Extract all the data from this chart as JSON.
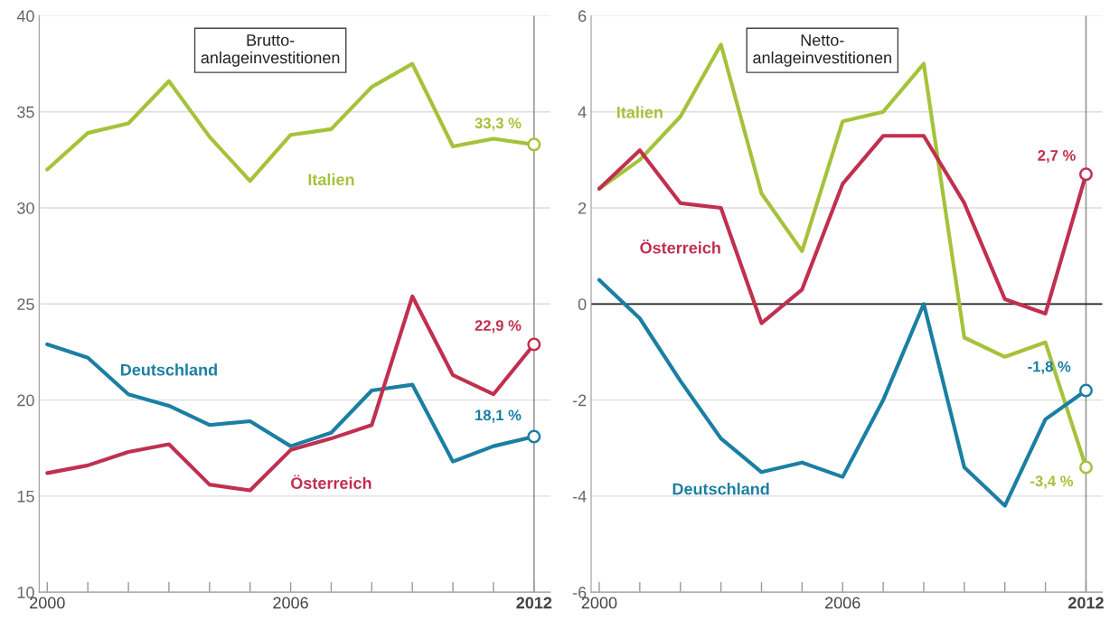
{
  "chart_data": [
    {
      "type": "line",
      "title": "Brutto-\nanlageinvestitionen",
      "x": [
        2000,
        2001,
        2002,
        2003,
        2004,
        2005,
        2006,
        2007,
        2008,
        2009,
        2010,
        2011,
        2012
      ],
      "series": [
        {
          "name": "Italien",
          "color": "#a5c23a",
          "values": [
            32.0,
            33.9,
            34.4,
            36.6,
            33.7,
            31.4,
            33.8,
            34.1,
            36.3,
            37.5,
            33.2,
            33.6,
            33.3
          ],
          "value_labels": [
            null,
            null,
            null,
            null,
            null,
            null,
            null,
            null,
            null,
            null,
            null,
            null,
            "33,3 %"
          ]
        },
        {
          "name": "Deutschland",
          "color": "#1b7fa3",
          "values": [
            22.9,
            22.2,
            20.3,
            19.7,
            18.7,
            18.9,
            17.6,
            18.3,
            20.5,
            20.8,
            16.8,
            17.6,
            18.1
          ],
          "value_labels": [
            null,
            null,
            null,
            null,
            null,
            null,
            null,
            null,
            null,
            null,
            null,
            null,
            "18,1 %"
          ]
        },
        {
          "name": "Österreich",
          "color": "#c0304f",
          "values": [
            16.2,
            16.6,
            17.3,
            17.7,
            15.6,
            15.3,
            17.4,
            18.0,
            18.7,
            25.4,
            21.3,
            20.3,
            22.9
          ],
          "value_labels": [
            null,
            null,
            null,
            null,
            null,
            null,
            null,
            null,
            null,
            null,
            null,
            null,
            "22,9 %"
          ]
        }
      ],
      "xlim": [
        1999.8,
        2012.4
      ],
      "ylim": [
        10,
        40
      ],
      "yticks": [
        10,
        15,
        20,
        25,
        30,
        35,
        40
      ],
      "xticks": [
        2000,
        {
          "value": 2001,
          "label": null
        },
        {
          "value": 2002,
          "label": null
        },
        {
          "value": 2003,
          "label": null
        },
        {
          "value": 2004,
          "label": null
        },
        {
          "value": 2005,
          "label": null
        },
        2006,
        {
          "value": 2007,
          "label": null
        },
        {
          "value": 2008,
          "label": null
        },
        {
          "value": 2009,
          "label": null
        },
        {
          "value": 2010,
          "label": null
        },
        {
          "value": 2011,
          "label": null
        },
        2012
      ],
      "ref_lines": [
        {
          "axis": "x",
          "value": 2012,
          "label": null,
          "color": "#999999"
        }
      ],
      "grid": "y",
      "legend": false
    },
    {
      "type": "line",
      "title": "Netto-\nanlageinvestitionen",
      "x": [
        2000,
        2001,
        2002,
        2003,
        2004,
        2005,
        2006,
        2007,
        2008,
        2009,
        2010,
        2011,
        2012
      ],
      "series": [
        {
          "name": "Italien",
          "color": "#a5c23a",
          "values": [
            2.4,
            3.0,
            3.9,
            5.4,
            2.3,
            1.1,
            3.8,
            4.0,
            5.0,
            -0.7,
            -1.1,
            -0.8,
            -3.4
          ],
          "value_labels": [
            null,
            null,
            null,
            null,
            null,
            null,
            null,
            null,
            null,
            null,
            null,
            null,
            "-3,4 %"
          ]
        },
        {
          "name": "Österreich",
          "color": "#c0304f",
          "values": [
            2.4,
            3.2,
            2.1,
            2.0,
            -0.4,
            0.3,
            2.5,
            3.5,
            3.5,
            2.1,
            0.1,
            -0.2,
            2.7
          ],
          "value_labels": [
            null,
            null,
            null,
            null,
            null,
            null,
            null,
            null,
            null,
            null,
            null,
            null,
            "2,7 %"
          ]
        },
        {
          "name": "Deutschland",
          "color": "#1b7fa3",
          "values": [
            0.5,
            -0.3,
            -1.6,
            -2.8,
            -3.5,
            -3.3,
            -3.6,
            -2.0,
            0.0,
            -3.4,
            -4.2,
            -2.4,
            -1.8
          ],
          "value_labels": [
            null,
            null,
            null,
            null,
            null,
            null,
            null,
            null,
            null,
            null,
            null,
            null,
            "-1,8 %"
          ]
        }
      ],
      "xlim": [
        1999.8,
        2012.4
      ],
      "ylim": [
        -6,
        6
      ],
      "yticks": [
        -6,
        -4,
        -2,
        0,
        2,
        4,
        6
      ],
      "xticks": [
        2000,
        {
          "value": 2001,
          "label": null
        },
        {
          "value": 2002,
          "label": null
        },
        {
          "value": 2003,
          "label": null
        },
        {
          "value": 2004,
          "label": null
        },
        {
          "value": 2005,
          "label": null
        },
        2006,
        {
          "value": 2007,
          "label": null
        },
        {
          "value": 2008,
          "label": null
        },
        {
          "value": 2009,
          "label": null
        },
        {
          "value": 2010,
          "label": null
        },
        {
          "value": 2011,
          "label": null
        },
        2012
      ],
      "ref_lines": [
        {
          "axis": "x",
          "value": 2012,
          "label": null,
          "color": "#999999"
        },
        {
          "axis": "y",
          "value": 0,
          "label": null,
          "color": "#222222"
        }
      ],
      "grid": "y",
      "legend": false
    }
  ]
}
